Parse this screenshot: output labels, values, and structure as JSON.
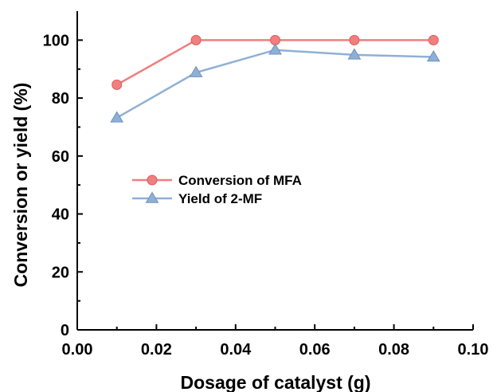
{
  "chart_data": {
    "type": "line",
    "title": "",
    "xlabel": "Dosage of catalyst (g)",
    "ylabel": "Conversion or yield (%)",
    "xlim": [
      0.0,
      0.1
    ],
    "ylim": [
      0,
      110
    ],
    "x_ticks": [
      "0.00",
      "0.02",
      "0.04",
      "0.06",
      "0.08",
      "0.10"
    ],
    "y_ticks": [
      "0",
      "20",
      "40",
      "60",
      "80",
      "100"
    ],
    "x_tick_values": [
      0.0,
      0.02,
      0.04,
      0.06,
      0.08,
      0.1
    ],
    "y_tick_values": [
      0,
      20,
      40,
      60,
      80,
      100
    ],
    "x": [
      0.01,
      0.03,
      0.05,
      0.07,
      0.09
    ],
    "series": [
      {
        "name": "Conversion of MFA",
        "marker": "circle",
        "color": "#f07f7f",
        "values": [
          84.6,
          100,
          100,
          100,
          100
        ]
      },
      {
        "name": "Yield of 2-MF",
        "marker": "triangle",
        "color": "#8fb0d6",
        "values": [
          73.2,
          88.8,
          96.6,
          94.9,
          94.2
        ]
      }
    ],
    "grid": false,
    "legend_position": "center-left"
  }
}
